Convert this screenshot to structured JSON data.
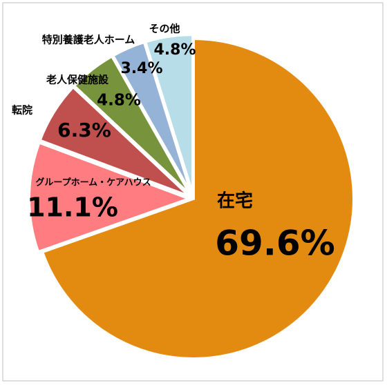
{
  "chart_data": {
    "type": "pie",
    "categories": [
      "在宅",
      "グループホーム・ケアハウス",
      "転院",
      "老人保健施設",
      "特別養護老人ホーム",
      "その他"
    ],
    "values": [
      69.6,
      11.1,
      6.3,
      4.8,
      3.4,
      4.8
    ],
    "value_labels": [
      "69.6%",
      "11.1%",
      "6.3%",
      "4.8%",
      "3.4%",
      "4.8%"
    ],
    "colors": [
      "#e38b10",
      "#ff7c80",
      "#c0504d",
      "#77933c",
      "#95b3d7",
      "#b7dee8"
    ]
  }
}
